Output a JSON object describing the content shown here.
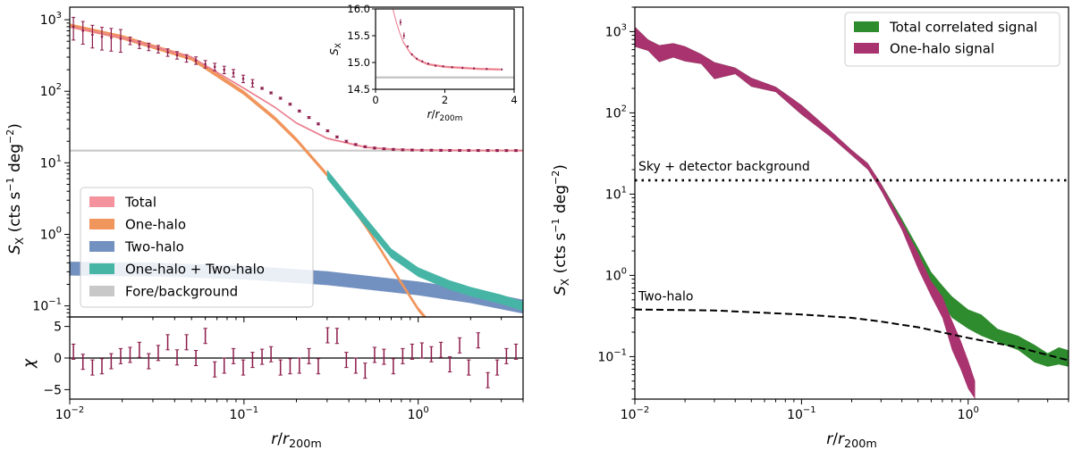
{
  "chart_data": [
    {
      "type": "area",
      "xscale": "log",
      "yscale": "log",
      "xlim": [
        0.01,
        4
      ],
      "ylim": [
        0.07,
        1500
      ],
      "ylabel": "S_X (cts s^-1 deg^-2)",
      "xlabel": "",
      "x_tick_labels": [
        "10^-2",
        "10^-1",
        "10^0"
      ],
      "y_tick_labels": [
        "10^-1",
        "10^0",
        "10^1",
        "10^2",
        "10^3"
      ],
      "legend_position": "lower-left",
      "legend": [
        {
          "name": "Total",
          "color": "#f4929e"
        },
        {
          "name": "One-halo",
          "color": "#f0955c"
        },
        {
          "name": "Two-halo",
          "color": "#7391c0"
        },
        {
          "name": "One-halo + Two-halo",
          "color": "#47b5a6"
        },
        {
          "name": "Fore/background",
          "color": "#c8c8c8"
        }
      ],
      "series": [
        {
          "name": "Total",
          "x": [
            0.01,
            0.02,
            0.05,
            0.1,
            0.15,
            0.2,
            0.3,
            0.5,
            0.7,
            1.0,
            2.0,
            4.0
          ],
          "y": [
            800,
            560,
            300,
            110,
            60,
            36,
            22,
            16.5,
            15.5,
            15.1,
            14.9,
            14.85
          ]
        },
        {
          "name": "One-halo",
          "x": [
            0.01,
            0.02,
            0.05,
            0.1,
            0.15,
            0.2,
            0.3,
            0.4,
            0.5,
            0.6,
            0.8,
            1.0,
            1.12
          ],
          "y": [
            830,
            570,
            290,
            95,
            42,
            21,
            6.8,
            2.8,
            1.3,
            0.65,
            0.21,
            0.09,
            0.065
          ]
        },
        {
          "name": "Two-halo",
          "x": [
            0.01,
            0.03,
            0.1,
            0.3,
            1.0,
            2.0,
            4.0
          ],
          "y": [
            0.34,
            0.33,
            0.3,
            0.25,
            0.18,
            0.14,
            0.1
          ]
        },
        {
          "name": "One-halo + Two-halo",
          "x": [
            0.3,
            0.5,
            0.7,
            1.0,
            1.5,
            2.0,
            3.0,
            4.0
          ],
          "y": [
            7.0,
            1.5,
            0.55,
            0.3,
            0.2,
            0.16,
            0.125,
            0.1
          ]
        },
        {
          "name": "Fore/background",
          "x": [
            0.01,
            4.0
          ],
          "y": [
            14.8,
            14.8
          ]
        },
        {
          "name": "data",
          "x": [
            0.0105,
            0.0119,
            0.0135,
            0.0153,
            0.0173,
            0.0196,
            0.0222,
            0.0251,
            0.0284,
            0.0322,
            0.0365,
            0.0413,
            0.0468,
            0.053,
            0.06,
            0.068,
            0.077,
            0.087,
            0.099,
            0.112,
            0.127,
            0.143,
            0.162,
            0.184,
            0.208,
            0.236,
            0.267,
            0.302,
            0.342,
            0.387,
            0.438,
            0.496,
            0.562,
            0.636,
            0.72,
            0.815,
            0.923,
            1.05,
            1.19,
            1.35,
            1.52,
            1.73,
            1.95,
            2.21,
            2.51,
            2.84,
            3.21,
            3.64
          ],
          "y": [
            800,
            700,
            620,
            580,
            560,
            540,
            510,
            450,
            420,
            390,
            350,
            320,
            290,
            270,
            240,
            220,
            200,
            180,
            150,
            130,
            110,
            95,
            80,
            66,
            53,
            43,
            35,
            28,
            23,
            20,
            18,
            16.8,
            16.1,
            15.7,
            15.4,
            15.2,
            15.1,
            15.0,
            15.0,
            14.95,
            14.9,
            14.9,
            14.9,
            14.88,
            14.87,
            14.86,
            14.85,
            14.85
          ]
        }
      ]
    },
    {
      "type": "area",
      "xscale": "linear",
      "xlim": [
        0,
        4
      ],
      "ylim": [
        14.5,
        16.0
      ],
      "x_tick_labels": [
        "0",
        "2",
        "4"
      ],
      "y_tick_labels": [
        "14.5",
        "15.0",
        "15.5",
        "16.0"
      ],
      "xlabel": "r/r_200m",
      "ylabel": "S_X",
      "series": [
        {
          "name": "Total",
          "x": [
            0.35,
            0.5,
            0.6,
            0.7,
            0.8,
            1.0,
            1.2,
            1.5,
            2.0,
            2.5,
            3.0,
            3.6
          ],
          "y": [
            16.8,
            16.0,
            15.75,
            15.55,
            15.38,
            15.18,
            15.06,
            14.97,
            14.92,
            14.9,
            14.88,
            14.87
          ]
        },
        {
          "name": "Fore/background",
          "x": [
            0,
            4
          ],
          "y": [
            14.72,
            14.72
          ]
        },
        {
          "name": "data",
          "x": [
            0.72,
            0.82,
            0.93,
            1.05,
            1.19,
            1.35,
            1.52,
            1.73,
            1.95,
            2.21,
            2.51,
            2.84,
            3.21,
            3.64
          ],
          "y": [
            15.75,
            15.5,
            15.3,
            15.15,
            15.07,
            15.02,
            14.98,
            14.94,
            14.93,
            14.91,
            14.9,
            14.89,
            14.88,
            14.87
          ]
        }
      ]
    },
    {
      "type": "scatter",
      "xscale": "log",
      "xlim": [
        0.01,
        4
      ],
      "ylim": [
        -6.5,
        6.5
      ],
      "ylabel": "χ",
      "xlabel": "r/r_200m",
      "x_tick_labels": [
        "10^-2",
        "10^-1",
        "10^0"
      ],
      "y_tick_labels": [
        "5",
        "0",
        "-5"
      ],
      "series": [
        {
          "name": "residuals",
          "x": [
            0.0105,
            0.0119,
            0.0135,
            0.0153,
            0.0173,
            0.0196,
            0.0222,
            0.0251,
            0.0284,
            0.0322,
            0.0365,
            0.0413,
            0.0468,
            0.053,
            0.06,
            0.068,
            0.077,
            0.087,
            0.099,
            0.112,
            0.127,
            0.143,
            0.162,
            0.184,
            0.208,
            0.236,
            0.267,
            0.302,
            0.342,
            0.387,
            0.438,
            0.496,
            0.562,
            0.636,
            0.72,
            0.815,
            0.923,
            1.05,
            1.19,
            1.35,
            1.52,
            1.73,
            1.95,
            2.21,
            2.51,
            2.84,
            3.21,
            3.64
          ],
          "y": [
            1.0,
            -0.6,
            -1.5,
            -1.3,
            -0.5,
            0.3,
            0.5,
            1.3,
            -0.5,
            0.8,
            2.5,
            0.1,
            2.5,
            0.0,
            3.5,
            -1.8,
            -1.2,
            0.3,
            -1.5,
            -0.3,
            0.2,
            0.6,
            -1.5,
            -1.3,
            -1.2,
            0.3,
            -1.3,
            3.6,
            3.5,
            -0.3,
            -1.2,
            -2.0,
            0.5,
            0.2,
            -1.3,
            0.3,
            1.0,
            1.2,
            0.6,
            1.3,
            -1.0,
            2.0,
            -1.5,
            2.8,
            -3.5,
            -1.5,
            0.3,
            1.0
          ],
          "errors": [
            1.2,
            1.2,
            1.2,
            1.2,
            1.2,
            1.2,
            1.2,
            1.2,
            1.2,
            1.2,
            1.2,
            1.2,
            1.2,
            1.2,
            1.2,
            1.2,
            1.2,
            1.2,
            1.2,
            1.2,
            1.2,
            1.2,
            1.2,
            1.2,
            1.2,
            1.2,
            1.2,
            1.2,
            1.2,
            1.2,
            1.2,
            1.2,
            1.2,
            1.2,
            1.2,
            1.2,
            1.2,
            1.2,
            1.2,
            1.2,
            1.2,
            1.2,
            1.2,
            1.2,
            1.2,
            1.2,
            1.2,
            1.2
          ]
        }
      ]
    },
    {
      "type": "area",
      "xscale": "log",
      "yscale": "log",
      "xlim": [
        0.01,
        4
      ],
      "ylim": [
        0.03,
        2000
      ],
      "ylabel": "S_X (cts s^-1 deg^-2)",
      "xlabel": "r/r_200m",
      "x_tick_labels": [
        "10^-2",
        "10^-1",
        "10^0"
      ],
      "y_tick_labels": [
        "10^-1",
        "10^0",
        "10^1",
        "10^2",
        "10^3"
      ],
      "legend_position": "top-right",
      "legend": [
        {
          "name": "Total correlated signal",
          "color": "#2e8b2e"
        },
        {
          "name": "One-halo signal",
          "color": "#a8336f"
        }
      ],
      "annotations": [
        "Sky + detector background",
        "Two-halo"
      ],
      "series": [
        {
          "name": "Total correlated signal",
          "x": [
            0.01,
            0.012,
            0.014,
            0.017,
            0.02,
            0.025,
            0.03,
            0.04,
            0.05,
            0.07,
            0.1,
            0.15,
            0.2,
            0.25,
            0.3,
            0.4,
            0.5,
            0.6,
            0.7,
            0.8,
            1.0,
            1.2,
            1.5,
            2.0,
            2.5,
            3.0,
            3.5,
            4.0
          ],
          "y_low": [
            650,
            580,
            420,
            480,
            430,
            400,
            260,
            300,
            210,
            180,
            95,
            50,
            30,
            20,
            11,
            4.0,
            1.6,
            0.75,
            0.45,
            0.3,
            0.22,
            0.18,
            0.15,
            0.12,
            0.085,
            0.075,
            0.08,
            0.075
          ],
          "y_high": [
            1150,
            800,
            680,
            720,
            660,
            530,
            420,
            360,
            270,
            210,
            125,
            60,
            35,
            24,
            13.5,
            5.0,
            2.2,
            1.1,
            0.75,
            0.55,
            0.38,
            0.33,
            0.22,
            0.18,
            0.14,
            0.11,
            0.13,
            0.12
          ]
        },
        {
          "name": "One-halo signal",
          "x": [
            0.01,
            0.012,
            0.014,
            0.017,
            0.02,
            0.025,
            0.03,
            0.04,
            0.05,
            0.07,
            0.1,
            0.15,
            0.2,
            0.25,
            0.3,
            0.4,
            0.5,
            0.6,
            0.7,
            0.8,
            0.9,
            1.0,
            1.1
          ],
          "y_low": [
            650,
            580,
            420,
            480,
            430,
            400,
            260,
            300,
            210,
            180,
            95,
            50,
            30,
            20,
            11,
            3.6,
            1.2,
            0.55,
            0.3,
            0.12,
            0.07,
            0.04,
            0.03
          ],
          "y_high": [
            1150,
            800,
            680,
            720,
            660,
            530,
            420,
            360,
            270,
            210,
            125,
            60,
            35,
            24,
            13.5,
            4.6,
            1.9,
            0.85,
            0.55,
            0.28,
            0.16,
            0.09,
            0.05
          ]
        },
        {
          "name": "Sky + detector background",
          "x": [
            0.01,
            4.0
          ],
          "y": [
            14.8,
            14.8
          ]
        },
        {
          "name": "Two-halo",
          "x": [
            0.01,
            0.03,
            0.1,
            0.2,
            0.3,
            0.5,
            1.0,
            2.0,
            4.0
          ],
          "y": [
            0.38,
            0.37,
            0.33,
            0.3,
            0.27,
            0.23,
            0.17,
            0.13,
            0.09
          ]
        }
      ]
    }
  ]
}
